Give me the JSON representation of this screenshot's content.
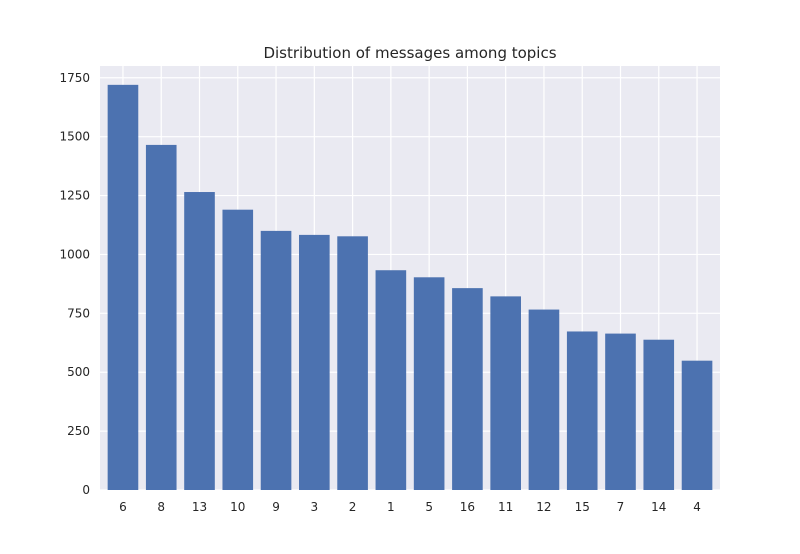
{
  "chart_data": {
    "type": "bar",
    "title": "Distribution of messages among topics",
    "xlabel": "",
    "ylabel": "",
    "categories": [
      "6",
      "8",
      "13",
      "10",
      "9",
      "3",
      "2",
      "1",
      "5",
      "16",
      "11",
      "12",
      "15",
      "7",
      "14",
      "4"
    ],
    "values": [
      1720,
      1465,
      1265,
      1190,
      1100,
      1083,
      1077,
      933,
      903,
      857,
      822,
      766,
      673,
      664,
      638,
      549
    ],
    "ylim": [
      0,
      1800
    ],
    "yticks": [
      0,
      250,
      500,
      750,
      1000,
      1250,
      1500,
      1750
    ],
    "grid": true,
    "colors": {
      "bar": "#4c72b0",
      "plot_background": "#eaeaf2",
      "grid": "#ffffff"
    }
  }
}
